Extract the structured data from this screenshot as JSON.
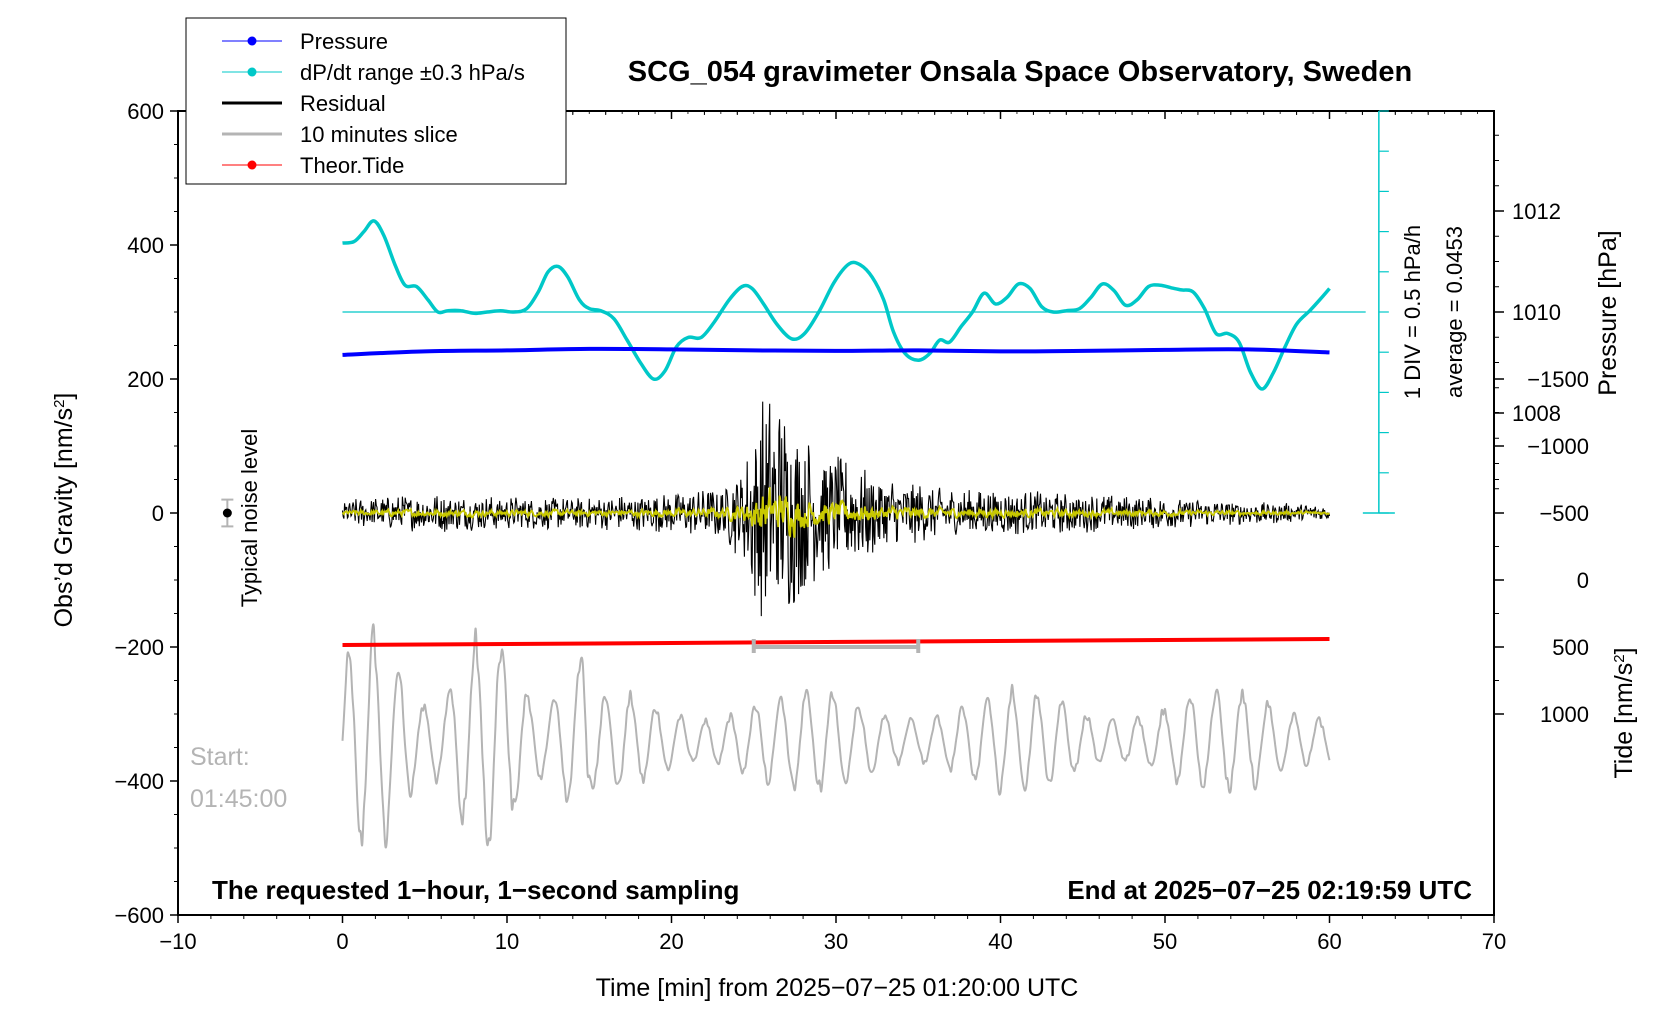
{
  "chart_data": {
    "type": "line",
    "title": "SCG_054 gravimeter Onsala Space Observatory, Sweden",
    "xlabel": "Time [min] from 2025−07−25 01:20:00 UTC",
    "ylabel": "Obs’d Gravity [nm/s",
    "ylabel_sup": "2",
    "ylabel_end": "]",
    "y2label": "Pressure [hPa]",
    "y3label": "Tide [nm/s",
    "y3label_sup": "2",
    "y3label_end": "]",
    "xlim": [
      -10,
      70
    ],
    "ylim": [
      -600,
      600
    ],
    "xticks": [
      "−10",
      "0",
      "10",
      "20",
      "30",
      "40",
      "50",
      "60",
      "70"
    ],
    "xtick_values": [
      -10,
      0,
      10,
      20,
      30,
      40,
      50,
      60,
      70
    ],
    "yticks": [
      "600",
      "400",
      "200",
      "0",
      "−200",
      "−400",
      "−600"
    ],
    "ytick_values": [
      600,
      400,
      200,
      0,
      -200,
      -400,
      -600
    ],
    "pressure_ticks": [
      "1012",
      "1010",
      "1008"
    ],
    "pressure_tick_values": [
      1012,
      1010,
      1008
    ],
    "tide_ticks": [
      "1000",
      "500",
      "0",
      "−500",
      "−1000",
      "−1500"
    ],
    "tide_tick_values": [
      1000,
      500,
      0,
      -500,
      -1000,
      -1500
    ],
    "legend": [
      {
        "label": "Pressure",
        "color": "#0000ff",
        "marker": true
      },
      {
        "label": "dP/dt range ±0.3 hPa/s",
        "color": "#00c8c8",
        "marker": true
      },
      {
        "label": "Residual",
        "color": "#000000",
        "marker": false
      },
      {
        "label": "10 minutes slice",
        "color": "#b4b4b4",
        "marker": false
      },
      {
        "label": "Theor.Tide",
        "color": "#ff0000",
        "marker": true
      }
    ],
    "series": [
      {
        "name": "Pressure",
        "color": "#0000ff",
        "unit": "hPa",
        "x": [
          0,
          5,
          10,
          15,
          20,
          25,
          30,
          35,
          40,
          45,
          50,
          55,
          60
        ],
        "values": [
          1009.15,
          1009.22,
          1009.24,
          1009.27,
          1009.26,
          1009.24,
          1009.23,
          1009.24,
          1009.22,
          1009.23,
          1009.25,
          1009.26,
          1009.2
        ]
      },
      {
        "name": "dP/dt",
        "color": "#00c8c8",
        "unit": "gravity-axis nm/s2",
        "x": [
          0,
          0.7,
          1.3,
          1.9,
          2.5,
          3.2,
          3.8,
          4.5,
          5.2,
          5.8,
          6.4,
          7.2,
          8.0,
          8.8,
          9.6,
          10.4,
          11.2,
          11.9,
          12.5,
          13.1,
          13.7,
          14.4,
          15.0,
          15.7,
          16.5,
          17.3,
          18.1,
          18.9,
          19.6,
          20.3,
          21.0,
          21.8,
          22.6,
          23.5,
          24.3,
          24.9,
          25.6,
          26.4,
          27.3,
          28.1,
          29.0,
          29.9,
          30.8,
          31.5,
          32.2,
          32.9,
          33.5,
          34.2,
          35.0,
          35.7,
          36.3,
          36.9,
          37.6,
          38.3,
          39.0,
          39.7,
          40.4,
          41.1,
          41.8,
          42.5,
          43.2,
          44.0,
          44.8,
          45.5,
          46.2,
          46.9,
          47.6,
          48.3,
          49.0,
          49.7,
          50.4,
          51.0,
          51.7,
          52.4,
          53.1,
          53.8,
          54.5,
          55.2,
          55.9,
          56.6,
          57.3,
          58.0,
          58.8,
          59.4,
          60.0
        ],
        "values": [
          403,
          405,
          420,
          436,
          415,
          370,
          340,
          338,
          318,
          300,
          302,
          302,
          298,
          300,
          302,
          300,
          305,
          330,
          360,
          368,
          352,
          318,
          305,
          302,
          290,
          258,
          225,
          200,
          212,
          248,
          262,
          262,
          285,
          318,
          338,
          335,
          312,
          282,
          260,
          268,
          302,
          345,
          372,
          370,
          352,
          318,
          270,
          238,
          228,
          238,
          258,
          255,
          278,
          300,
          328,
          312,
          322,
          342,
          335,
          308,
          300,
          302,
          305,
          322,
          342,
          332,
          310,
          318,
          338,
          340,
          336,
          333,
          330,
          305,
          268,
          268,
          255,
          210,
          185,
          210,
          248,
          282,
          302,
          318,
          335
        ]
      },
      {
        "name": "Theor.Tide",
        "color": "#ff0000",
        "unit": "gravity-axis nm/s2",
        "x": [
          0,
          60
        ],
        "values": [
          -197,
          -188
        ]
      }
    ],
    "reference_line": {
      "label": "average = 0.0453",
      "value": 300,
      "color": "#00c8c8"
    },
    "scale_bar": {
      "label": "1 DIV = 0.5 hPa/h",
      "from": 0,
      "to": 600,
      "x": 63
    },
    "residual_envelope": [
      {
        "x": 0,
        "amp": 20
      },
      {
        "x": 5,
        "amp": 30
      },
      {
        "x": 10,
        "amp": 25
      },
      {
        "x": 15,
        "amp": 25
      },
      {
        "x": 20,
        "amp": 30
      },
      {
        "x": 23,
        "amp": 40
      },
      {
        "x": 24.5,
        "amp": 80
      },
      {
        "x": 25.5,
        "amp": 200
      },
      {
        "x": 27,
        "amp": 160
      },
      {
        "x": 29,
        "amp": 100
      },
      {
        "x": 33,
        "amp": 60
      },
      {
        "x": 36,
        "amp": 40
      },
      {
        "x": 45,
        "amp": 30
      },
      {
        "x": 55,
        "amp": 18
      },
      {
        "x": 60,
        "amp": 12
      }
    ],
    "residual_range": [
      -200,
      220
    ],
    "noise_level": {
      "x": -7,
      "value": 0,
      "error": 20,
      "label": "Typical noise level"
    },
    "slice_marker": {
      "x_start": 25,
      "x_end": 35,
      "y": -200
    },
    "slice_time": [
      "Start:",
      "01:45:00"
    ],
    "annotations": {
      "left": "The requested 1−hour, 1−second sampling",
      "right": "End at 2025−07−25 02:19:59 UTC"
    }
  }
}
